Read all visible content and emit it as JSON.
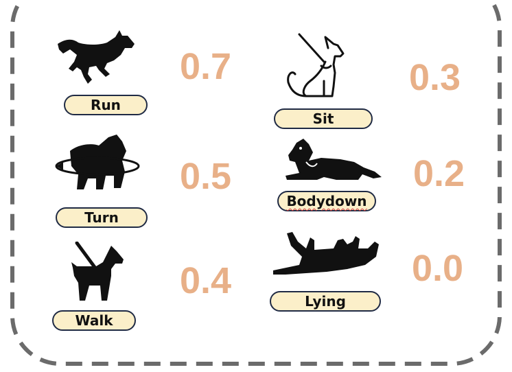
{
  "actions": [
    {
      "label": "Run",
      "score": "0.7",
      "icon": "running-dog-icon"
    },
    {
      "label": "Sit",
      "score": "0.3",
      "icon": "sitting-dog-icon"
    },
    {
      "label": "Turn",
      "score": "0.5",
      "icon": "turning-dog-icon"
    },
    {
      "label": "Bodydown",
      "score": "0.2",
      "icon": "lying-down-dog-icon"
    },
    {
      "label": "Walk",
      "score": "0.4",
      "icon": "walking-dog-icon"
    },
    {
      "label": "Lying",
      "score": "0.0",
      "icon": "rolled-over-dog-icon"
    }
  ],
  "colors": {
    "score": "#e8b088",
    "pill_fill": "#fbefc9",
    "pill_border": "#1f2a44",
    "frame": "#6b6b6b"
  }
}
